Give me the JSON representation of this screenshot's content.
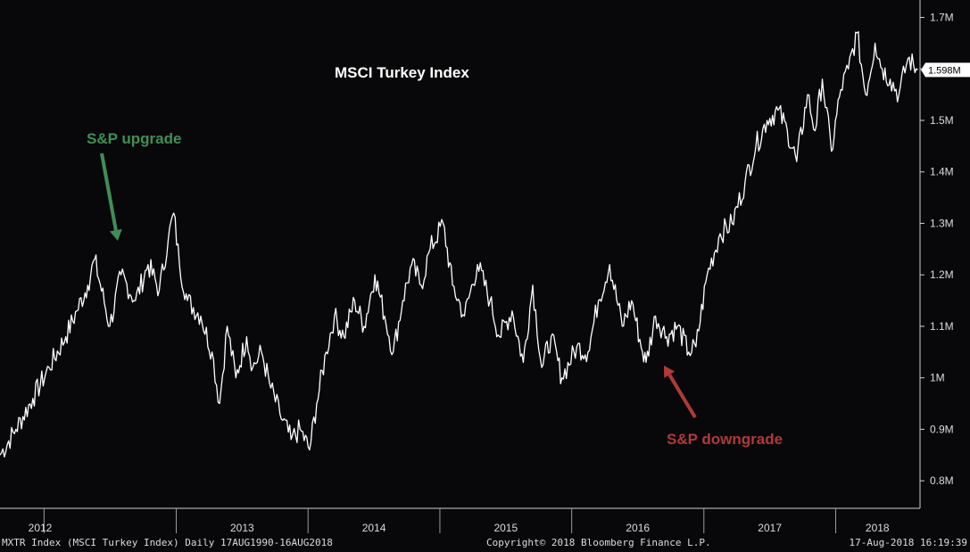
{
  "chart_data": {
    "type": "line",
    "title": "MSCI Turkey Index",
    "series": [
      {
        "x": [
          "2011-09-01",
          "2011-10-15",
          "2011-12-01",
          "2012-01-15",
          "2012-03-01",
          "2012-04-01",
          "2012-05-01",
          "2012-05-20",
          "2012-07-01",
          "2012-08-01",
          "2012-09-10",
          "2012-10-15",
          "2012-11-15",
          "2012-12-10",
          "2012-12-25",
          "2013-01-10",
          "2013-02-01",
          "2013-03-10",
          "2013-04-10",
          "2013-05-01",
          "2013-05-22",
          "2013-06-15",
          "2013-07-15",
          "2013-08-01",
          "2013-08-25",
          "2013-09-20",
          "2013-10-15",
          "2013-11-15",
          "2013-12-10",
          "2014-01-05",
          "2014-01-25",
          "2014-02-20",
          "2014-03-15",
          "2014-04-10",
          "2014-05-10",
          "2014-06-05",
          "2014-07-05",
          "2014-08-01",
          "2014-08-25",
          "2014-09-20",
          "2014-10-15",
          "2014-11-10",
          "2014-12-05",
          "2015-01-10",
          "2015-02-05",
          "2015-03-10",
          "2015-04-15",
          "2015-05-20",
          "2015-06-15",
          "2015-07-20",
          "2015-08-20",
          "2015-09-15",
          "2015-10-10",
          "2015-11-05",
          "2015-12-05",
          "2016-01-15",
          "2016-02-15",
          "2016-03-15",
          "2016-04-15",
          "2016-05-20",
          "2016-06-15",
          "2016-07-15",
          "2016-07-25",
          "2016-08-20",
          "2016-09-20",
          "2016-10-20",
          "2016-11-20",
          "2016-12-10",
          "2017-01-10",
          "2017-02-15",
          "2017-03-20",
          "2017-04-25",
          "2017-05-25",
          "2017-06-25",
          "2017-07-25",
          "2017-08-20",
          "2017-09-15",
          "2017-10-15",
          "2017-11-05",
          "2017-11-25",
          "2017-12-20",
          "2018-01-15",
          "2018-02-05",
          "2018-03-01",
          "2018-03-25",
          "2018-04-20",
          "2018-05-10",
          "2018-06-01",
          "2018-06-25",
          "2018-07-20",
          "2018-08-16"
        ],
        "values": [
          0.85,
          0.9,
          0.96,
          1.02,
          1.08,
          1.13,
          1.18,
          1.23,
          1.1,
          1.2,
          1.15,
          1.22,
          1.17,
          1.27,
          1.32,
          1.22,
          1.15,
          1.12,
          1.05,
          0.95,
          1.1,
          1.0,
          1.08,
          1.02,
          1.05,
          0.98,
          0.93,
          0.88,
          0.9,
          0.86,
          0.95,
          1.05,
          1.12,
          1.08,
          1.15,
          1.1,
          1.2,
          1.12,
          1.05,
          1.15,
          1.22,
          1.18,
          1.25,
          1.3,
          1.18,
          1.12,
          1.22,
          1.15,
          1.08,
          1.13,
          1.03,
          1.18,
          1.02,
          1.08,
          1.0,
          1.06,
          1.05,
          1.15,
          1.22,
          1.1,
          1.15,
          1.05,
          1.03,
          1.12,
          1.08,
          1.1,
          1.05,
          1.06,
          1.2,
          1.28,
          1.3,
          1.38,
          1.45,
          1.5,
          1.52,
          1.48,
          1.42,
          1.55,
          1.48,
          1.58,
          1.44,
          1.56,
          1.6,
          1.67,
          1.55,
          1.65,
          1.6,
          1.58,
          1.55,
          1.62,
          1.598
        ]
      }
    ],
    "xlabels": [
      "2012",
      "2013",
      "2014",
      "2015",
      "2016",
      "2017",
      "2018"
    ],
    "yticks": [
      "0.8M",
      "0.9M",
      "1M",
      "1.1M",
      "1.2M",
      "1.3M",
      "1.4M",
      "1.5M",
      "1.6M",
      "1.7M"
    ],
    "ytick_values": [
      0.8,
      0.9,
      1.0,
      1.1,
      1.2,
      1.3,
      1.4,
      1.5,
      1.6,
      1.7
    ],
    "ylim": [
      0.75,
      1.72
    ],
    "grid": false,
    "last_value_label": "1.598M",
    "annotations": [
      {
        "text": "S&P upgrade",
        "color": "#3f8f55",
        "date": "2012-11-25",
        "value": 1.23
      },
      {
        "text": "S&P downgrade",
        "color": "#b03a3a",
        "date": "2016-07-20",
        "value": 1.02
      }
    ]
  },
  "footer": {
    "left": "MXTR Index (MSCI Turkey Index)  Daily 17AUG1990-16AUG2018",
    "center": "Copyright© 2018 Bloomberg Finance L.P.",
    "right": "17-Aug-2018 16:19:39"
  }
}
